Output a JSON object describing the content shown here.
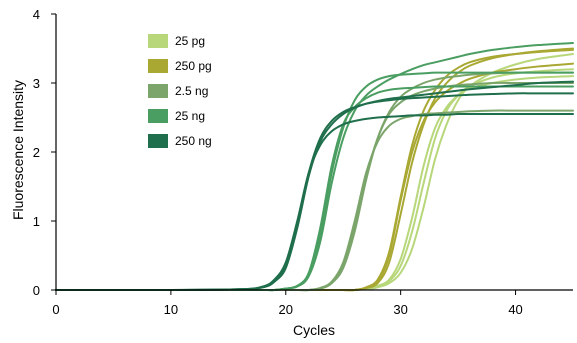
{
  "chart_data": {
    "type": "line",
    "xlabel": "Cycles",
    "ylabel": "Fluorescence Intensity",
    "xlim": [
      0,
      45
    ],
    "ylim": [
      0,
      4
    ],
    "x_ticks": [
      0,
      10,
      20,
      30,
      40
    ],
    "y_ticks": [
      0,
      1,
      2,
      3,
      4
    ],
    "grid": false,
    "legend_position": "top-left",
    "x": [
      0,
      10,
      16,
      18,
      19,
      20,
      21,
      22,
      23,
      24,
      25,
      26,
      27,
      28,
      29,
      30,
      31,
      32,
      33,
      34,
      35,
      36,
      38,
      40,
      42,
      45
    ],
    "series": [
      {
        "name": "25 pg",
        "color": "#b7d77a",
        "curves": [
          [
            0,
            0,
            0,
            0,
            0,
            0,
            0,
            0,
            0,
            0,
            0,
            0,
            0.02,
            0.06,
            0.15,
            0.45,
            1.05,
            1.8,
            2.35,
            2.65,
            2.82,
            2.92,
            3.0,
            3.05,
            3.08,
            3.1
          ],
          [
            0,
            0,
            0,
            0,
            0,
            0,
            0,
            0,
            0,
            0,
            0,
            0,
            0.02,
            0.06,
            0.13,
            0.35,
            0.85,
            1.55,
            2.2,
            2.6,
            2.82,
            2.95,
            3.08,
            3.14,
            3.17,
            3.2
          ],
          [
            0,
            0,
            0,
            0,
            0,
            0,
            0,
            0,
            0,
            0,
            0,
            0,
            0.01,
            0.04,
            0.1,
            0.25,
            0.6,
            1.2,
            1.9,
            2.4,
            2.75,
            2.95,
            3.15,
            3.27,
            3.35,
            3.42
          ]
        ]
      },
      {
        "name": "250 pg",
        "color": "#a9a833",
        "curves": [
          [
            0,
            0,
            0,
            0,
            0,
            0,
            0,
            0,
            0,
            0,
            0,
            0,
            0.03,
            0.12,
            0.5,
            1.3,
            2.0,
            2.45,
            2.72,
            2.88,
            2.98,
            3.06,
            3.15,
            3.2,
            3.24,
            3.28
          ],
          [
            0,
            0,
            0,
            0,
            0,
            0,
            0,
            0,
            0,
            0,
            0,
            0,
            0.04,
            0.15,
            0.55,
            1.35,
            2.1,
            2.6,
            2.9,
            3.1,
            3.22,
            3.3,
            3.38,
            3.42,
            3.45,
            3.48
          ],
          [
            0,
            0,
            0,
            0,
            0,
            0,
            0,
            0,
            0,
            0,
            0,
            0,
            0.03,
            0.1,
            0.4,
            1.1,
            1.85,
            2.4,
            2.78,
            3.0,
            3.15,
            3.25,
            3.36,
            3.42,
            3.46,
            3.5
          ]
        ]
      },
      {
        "name": "2.5 ng",
        "color": "#7ba56b",
        "curves": [
          [
            0,
            0,
            0,
            0,
            0,
            0,
            0,
            0,
            0.03,
            0.12,
            0.4,
            1.0,
            1.7,
            2.15,
            2.38,
            2.48,
            2.52,
            2.55,
            2.56,
            2.57,
            2.58,
            2.59,
            2.6,
            2.6,
            2.6,
            2.6
          ],
          [
            0,
            0,
            0,
            0,
            0,
            0,
            0,
            0,
            0.02,
            0.1,
            0.35,
            0.9,
            1.65,
            2.2,
            2.55,
            2.72,
            2.82,
            2.88,
            2.92,
            2.95,
            2.97,
            2.98,
            3.0,
            3.0,
            3.0,
            3.0
          ],
          [
            0,
            0,
            0,
            0,
            0,
            0,
            0,
            0,
            0.02,
            0.1,
            0.32,
            0.85,
            1.6,
            2.2,
            2.58,
            2.8,
            2.92,
            3.0,
            3.05,
            3.08,
            3.1,
            3.12,
            3.14,
            3.15,
            3.15,
            3.15
          ]
        ]
      },
      {
        "name": "25 ng",
        "color": "#4a9e62",
        "curves": [
          [
            0,
            0,
            0,
            0,
            0,
            0.02,
            0.06,
            0.25,
            0.9,
            1.8,
            2.4,
            2.65,
            2.78,
            2.86,
            2.9,
            2.92,
            2.93,
            2.94,
            2.95,
            2.95,
            2.95,
            2.95,
            2.95,
            2.95,
            2.95,
            2.95
          ],
          [
            0,
            0,
            0,
            0,
            0,
            0.02,
            0.06,
            0.22,
            0.8,
            1.7,
            2.35,
            2.75,
            2.95,
            3.05,
            3.1,
            3.12,
            3.13,
            3.14,
            3.15,
            3.15,
            3.15,
            3.15,
            3.15,
            3.15,
            3.15,
            3.15
          ],
          [
            0,
            0,
            0,
            0,
            0,
            0.02,
            0.05,
            0.2,
            0.7,
            1.55,
            2.2,
            2.6,
            2.82,
            2.95,
            3.05,
            3.13,
            3.2,
            3.26,
            3.3,
            3.34,
            3.38,
            3.42,
            3.48,
            3.52,
            3.55,
            3.58
          ]
        ]
      },
      {
        "name": "250 ng",
        "color": "#1f6e4c",
        "curves": [
          [
            0,
            0,
            0.01,
            0.05,
            0.15,
            0.4,
            1.0,
            1.7,
            2.1,
            2.3,
            2.4,
            2.45,
            2.48,
            2.5,
            2.51,
            2.52,
            2.53,
            2.53,
            2.54,
            2.54,
            2.55,
            2.55,
            2.55,
            2.55,
            2.55,
            2.55
          ],
          [
            0,
            0,
            0.01,
            0.04,
            0.12,
            0.35,
            0.95,
            1.7,
            2.2,
            2.45,
            2.58,
            2.65,
            2.7,
            2.73,
            2.75,
            2.77,
            2.78,
            2.79,
            2.8,
            2.81,
            2.82,
            2.83,
            2.84,
            2.85,
            2.85,
            2.85
          ],
          [
            0,
            0,
            0.01,
            0.04,
            0.12,
            0.32,
            0.9,
            1.65,
            2.15,
            2.4,
            2.55,
            2.64,
            2.7,
            2.74,
            2.77,
            2.79,
            2.81,
            2.83,
            2.85,
            2.87,
            2.89,
            2.91,
            2.94,
            2.97,
            3.0,
            3.02
          ]
        ]
      }
    ]
  }
}
